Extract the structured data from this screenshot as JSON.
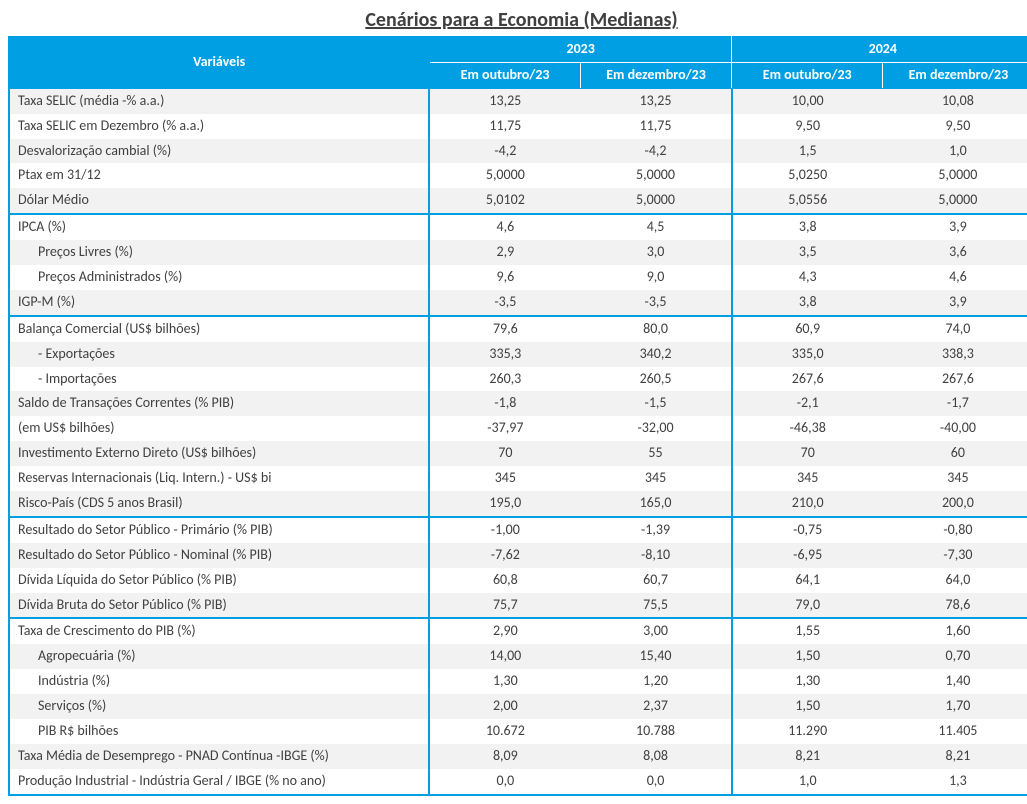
{
  "title": "Cenários para a Economia  (Medianas)",
  "colors": {
    "header_bg": "#009fe3",
    "header_fg": "#ffffff",
    "row_alt_bg": "#f2f2f2",
    "row_bg": "#ffffff",
    "text": "#404040",
    "border": "#009fe3"
  },
  "header": {
    "variables": "Variáveis",
    "year1": "2023",
    "year2": "2024",
    "sub1": "Em outubro/23",
    "sub2": "Em dezembro/23",
    "sub3": "Em outubro/23",
    "sub4": "Em dezembro/23"
  },
  "groups": [
    {
      "rows": [
        {
          "label": "Taxa SELIC (média -% a.a.)",
          "indent": 0,
          "v": [
            "13,25",
            "13,25",
            "10,00",
            "10,08"
          ]
        },
        {
          "label": "Taxa SELIC em Dezembro (% a.a.)",
          "indent": 0,
          "v": [
            "11,75",
            "11,75",
            "9,50",
            "9,50"
          ]
        },
        {
          "label": "Desvalorização cambial (%)",
          "indent": 0,
          "v": [
            "-4,2",
            "-4,2",
            "1,5",
            "1,0"
          ]
        },
        {
          "label": "Ptax em 31/12",
          "indent": 0,
          "v": [
            "5,0000",
            "5,0000",
            "5,0250",
            "5,0000"
          ]
        },
        {
          "label": "Dólar Médio",
          "indent": 0,
          "v": [
            "5,0102",
            "5,0000",
            "5,0556",
            "5,0000"
          ]
        }
      ]
    },
    {
      "rows": [
        {
          "label": "IPCA (%)",
          "indent": 0,
          "v": [
            "4,6",
            "4,5",
            "3,8",
            "3,9"
          ]
        },
        {
          "label": "Preços Livres (%)",
          "indent": 1,
          "v": [
            "2,9",
            "3,0",
            "3,5",
            "3,6"
          ]
        },
        {
          "label": "Preços Administrados (%)",
          "indent": 1,
          "v": [
            "9,6",
            "9,0",
            "4,3",
            "4,6"
          ]
        },
        {
          "label": "IGP-M (%)",
          "indent": 0,
          "v": [
            "-3,5",
            "-3,5",
            "3,8",
            "3,9"
          ]
        }
      ]
    },
    {
      "rows": [
        {
          "label": "Balança Comercial (US$ bilhões)",
          "indent": 0,
          "v": [
            "79,6",
            "80,0",
            "60,9",
            "74,0"
          ]
        },
        {
          "label": "  - Exportações",
          "indent": 1,
          "v": [
            "335,3",
            "340,2",
            "335,0",
            "338,3"
          ]
        },
        {
          "label": "  - Importações",
          "indent": 1,
          "v": [
            "260,3",
            "260,5",
            "267,6",
            "267,6"
          ]
        },
        {
          "label": "Saldo de Transações Correntes (% PIB)",
          "indent": 0,
          "v": [
            "-1,8",
            "-1,5",
            "-2,1",
            "-1,7"
          ]
        },
        {
          "label": "                               (em US$ bilhões)",
          "indent": 0,
          "v": [
            "-37,97",
            "-32,00",
            "-46,38",
            "-40,00"
          ]
        },
        {
          "label": "Investimento Externo Direto (US$ bilhões)",
          "indent": 0,
          "v": [
            "70",
            "55",
            "70",
            "60"
          ]
        },
        {
          "label": "Reservas Internacionais (Liq. Intern.) - US$ bi",
          "indent": 0,
          "v": [
            "345",
            "345",
            "345",
            "345"
          ]
        },
        {
          "label": "Risco-País (CDS 5 anos Brasil)",
          "indent": 0,
          "v": [
            "195,0",
            "165,0",
            "210,0",
            "200,0"
          ]
        }
      ]
    },
    {
      "rows": [
        {
          "label": "Resultado do Setor Público - Primário  (% PIB)",
          "indent": 0,
          "v": [
            "-1,00",
            "-1,39",
            "-0,75",
            "-0,80"
          ]
        },
        {
          "label": "Resultado do Setor Público - Nominal  (% PIB)",
          "indent": 0,
          "v": [
            "-7,62",
            "-8,10",
            "-6,95",
            "-7,30"
          ]
        },
        {
          "label": "Dívida Líquida do Setor Público (% PIB)",
          "indent": 0,
          "v": [
            "60,8",
            "60,7",
            "64,1",
            "64,0"
          ]
        },
        {
          "label": "Dívida Bruta do Setor Público (% PIB)",
          "indent": 0,
          "v": [
            "75,7",
            "75,5",
            "79,0",
            "78,6"
          ]
        }
      ]
    },
    {
      "rows": [
        {
          "label": "Taxa de Crescimento do PIB (%)",
          "indent": 0,
          "v": [
            "2,90",
            "3,00",
            "1,55",
            "1,60"
          ]
        },
        {
          "label": "Agropecuária (%)",
          "indent": 1,
          "v": [
            "14,00",
            "15,40",
            "1,50",
            "0,70"
          ]
        },
        {
          "label": "Indústria (%)",
          "indent": 1,
          "v": [
            "1,30",
            "1,20",
            "1,30",
            "1,40"
          ]
        },
        {
          "label": "Serviços (%)",
          "indent": 1,
          "v": [
            "2,00",
            "2,37",
            "1,50",
            "1,70"
          ]
        },
        {
          "label": "PIB R$ bilhões",
          "indent": 1,
          "v": [
            "10.672",
            "10.788",
            "11.290",
            "11.405"
          ]
        },
        {
          "label": "Taxa Média de Desemprego  - PNAD Contínua -IBGE (%)",
          "indent": 0,
          "v": [
            "8,09",
            "8,08",
            "8,21",
            "8,21"
          ]
        },
        {
          "label": "Produção Industrial - Indústria Geral / IBGE (% no ano)",
          "indent": 0,
          "v": [
            "0,0",
            "0,0",
            "1,0",
            "1,3"
          ]
        }
      ]
    }
  ]
}
